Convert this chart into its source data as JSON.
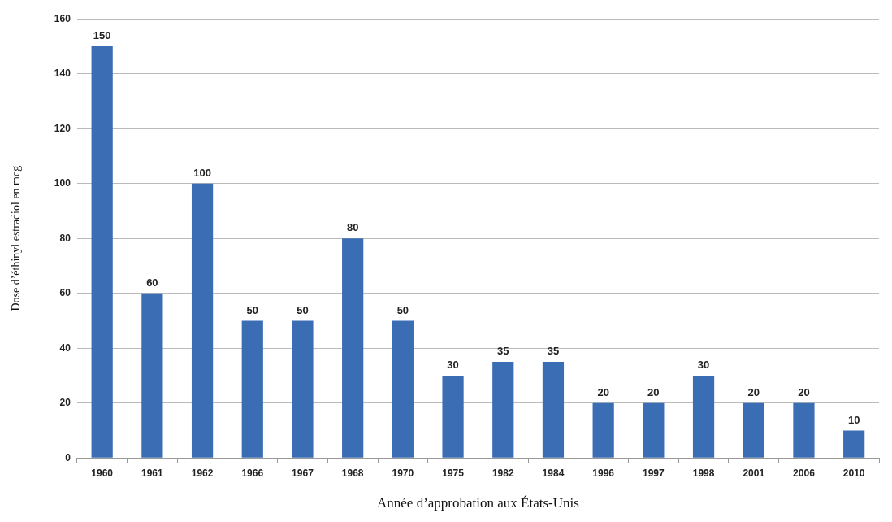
{
  "chart_data": {
    "type": "bar",
    "xlabel": "Année d’approbation aux États-Unis",
    "ylabel": "Dose d’éthinyl estradiol en mcg",
    "categories": [
      "1960",
      "1961",
      "1962",
      "1966",
      "1967",
      "1968",
      "1970",
      "1975",
      "1982",
      "1984",
      "1996",
      "1997",
      "1998",
      "2001",
      "2006",
      "2010"
    ],
    "values": [
      150,
      60,
      100,
      50,
      50,
      80,
      50,
      30,
      35,
      35,
      20,
      20,
      30,
      20,
      20,
      10
    ],
    "color": "#3b6db5",
    "ylim": [
      0,
      160
    ],
    "yticks": [
      0,
      20,
      40,
      60,
      80,
      100,
      120,
      140,
      160
    ],
    "grid": "y",
    "data_labels": true,
    "legend": false
  }
}
